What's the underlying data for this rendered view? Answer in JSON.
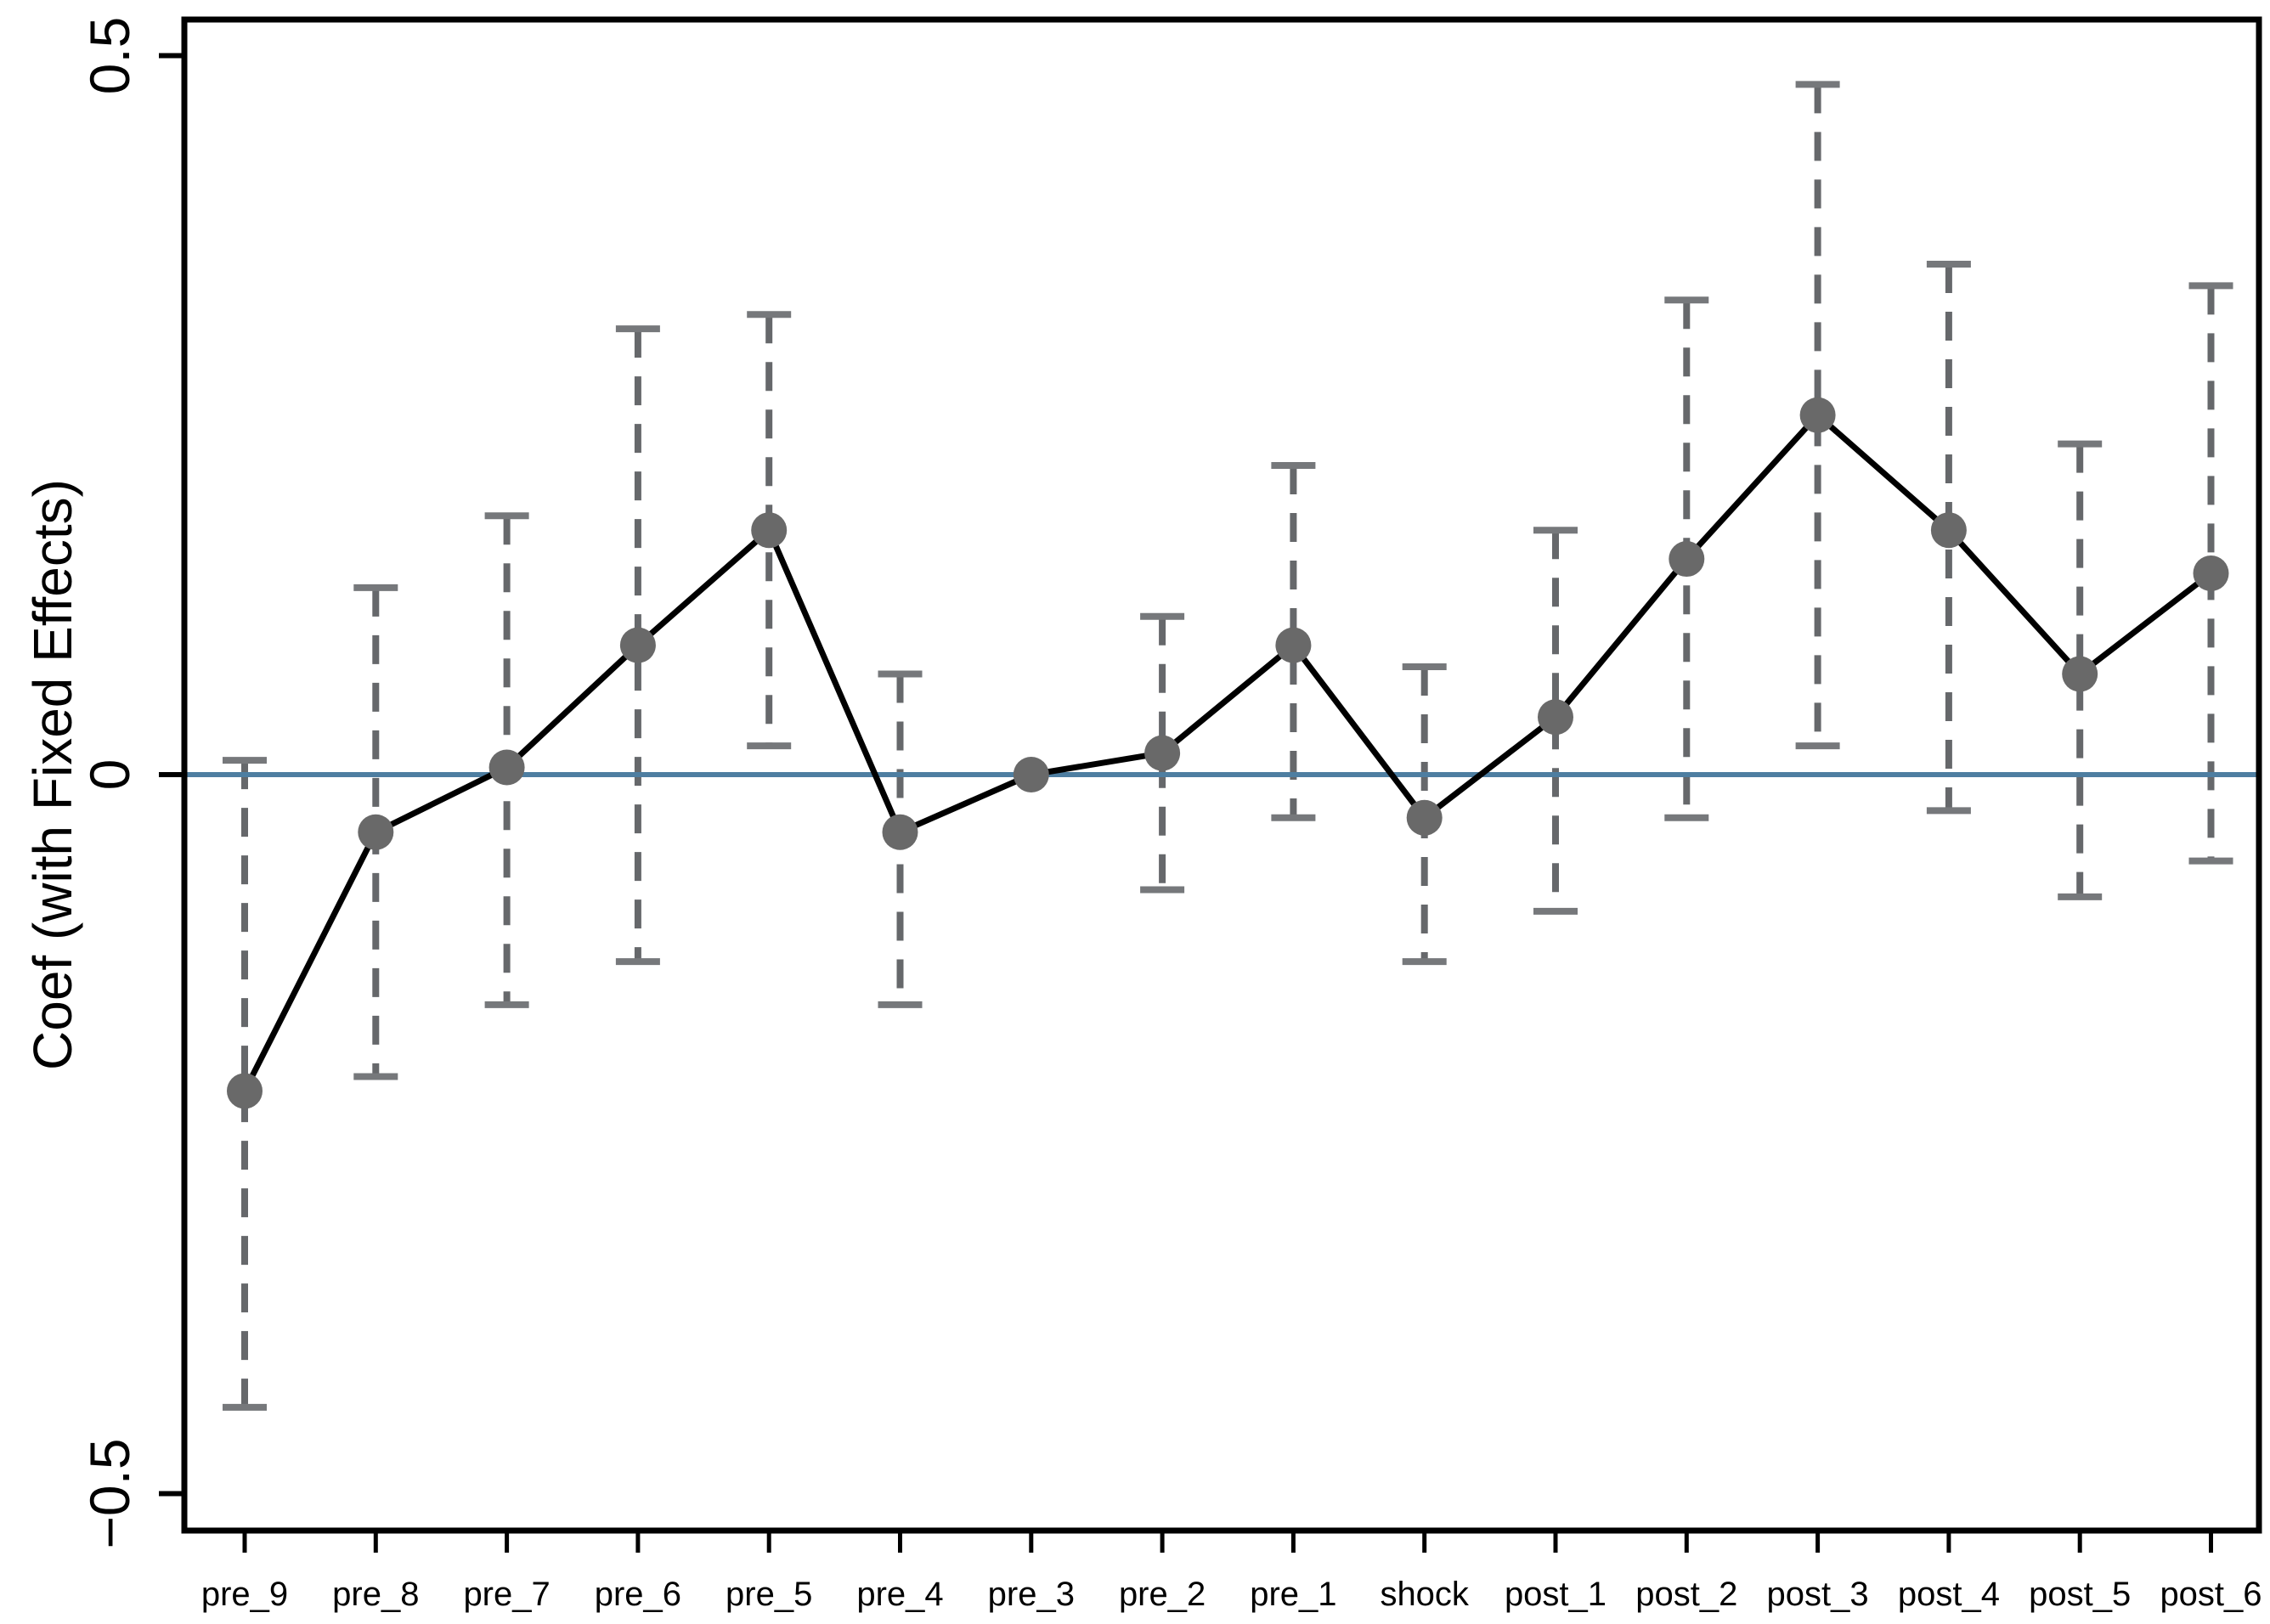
{
  "chart_data": {
    "type": "line",
    "title": "",
    "subtitle": "",
    "xlabel": "",
    "ylabel": "Coef (with Fixed Effects)",
    "legend": "none",
    "grid": false,
    "categories": [
      "pre_9",
      "pre_8",
      "pre_7",
      "pre_6",
      "pre_5",
      "pre_4",
      "pre_3",
      "pre_2",
      "pre_1",
      "shock",
      "post_1",
      "post_2",
      "post_3",
      "post_4",
      "post_5",
      "post_6"
    ],
    "series": [
      {
        "name": "coefficient",
        "values": [
          -0.22,
          -0.04,
          0.005,
          0.09,
          0.17,
          -0.04,
          0.0,
          0.015,
          0.09,
          -0.03,
          0.04,
          0.15,
          0.25,
          0.17,
          0.07,
          0.14
        ]
      },
      {
        "name": "ci_lower",
        "values": [
          -0.44,
          -0.21,
          -0.16,
          -0.13,
          0.02,
          -0.16,
          null,
          -0.08,
          -0.03,
          -0.13,
          -0.095,
          -0.03,
          0.02,
          -0.025,
          -0.085,
          -0.06
        ]
      },
      {
        "name": "ci_upper",
        "values": [
          0.01,
          0.13,
          0.18,
          0.31,
          0.32,
          0.07,
          null,
          0.11,
          0.215,
          0.075,
          0.17,
          0.33,
          0.48,
          0.355,
          0.23,
          0.34
        ]
      }
    ],
    "reference_period": "pre_3",
    "reference_line_y": 0,
    "ylim": [
      -0.525,
      0.525
    ],
    "yticks": {
      "values": [
        0.5,
        0,
        -0.5
      ],
      "labels": [
        "0.5",
        "0",
        "−0.5"
      ]
    },
    "marker": "circle",
    "error_bar_style": "dashed",
    "colors": {
      "point": "#696969",
      "error_bar": "#66686b",
      "error_bar_cap": "#76787b",
      "trend_line": "#000000",
      "zero_line": "#4e7ea1",
      "axis": "#000000"
    }
  }
}
